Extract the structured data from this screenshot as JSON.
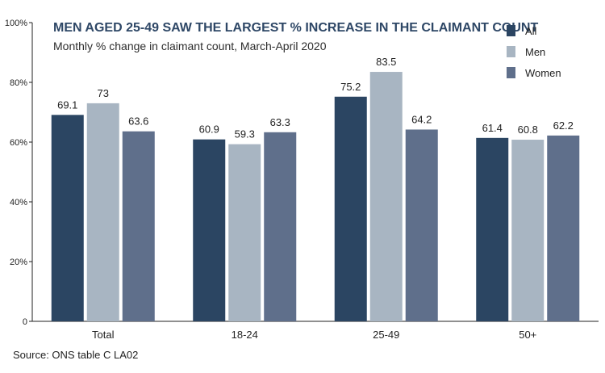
{
  "chart_data": {
    "type": "bar",
    "title": "MEN AGED 25-49 SAW THE LARGEST % INCREASE IN THE CLAIMANT COUNT",
    "subtitle": "Monthly % change in claimant count, March-April 2020",
    "categories": [
      "Total",
      "18-24",
      "25-49",
      "50+"
    ],
    "series": [
      {
        "name": "All",
        "values": [
          69.1,
          60.9,
          75.2,
          61.4
        ],
        "color": "#2b4562"
      },
      {
        "name": "Men",
        "values": [
          73,
          59.3,
          83.5,
          60.8
        ],
        "color": "#a8b5c2"
      },
      {
        "name": "Women",
        "values": [
          63.6,
          63.3,
          64.2,
          62.2
        ],
        "color": "#5f6f8b"
      }
    ],
    "value_labels": [
      [
        "69.1",
        "60.9",
        "75.2",
        "61.4"
      ],
      [
        "73",
        "59.3",
        "83.5",
        "60.8"
      ],
      [
        "63.6",
        "63.3",
        "64.2",
        "62.2"
      ]
    ],
    "ylim": [
      0,
      100
    ],
    "yticks": [
      0,
      20,
      40,
      60,
      80,
      100
    ],
    "ytick_labels": [
      "0",
      "20%",
      "40%",
      "60%",
      "80%",
      "100%"
    ],
    "xlabel": "",
    "ylabel": "",
    "grid": false,
    "legend_position": "top-right",
    "source": "Source: ONS table C LA02"
  }
}
